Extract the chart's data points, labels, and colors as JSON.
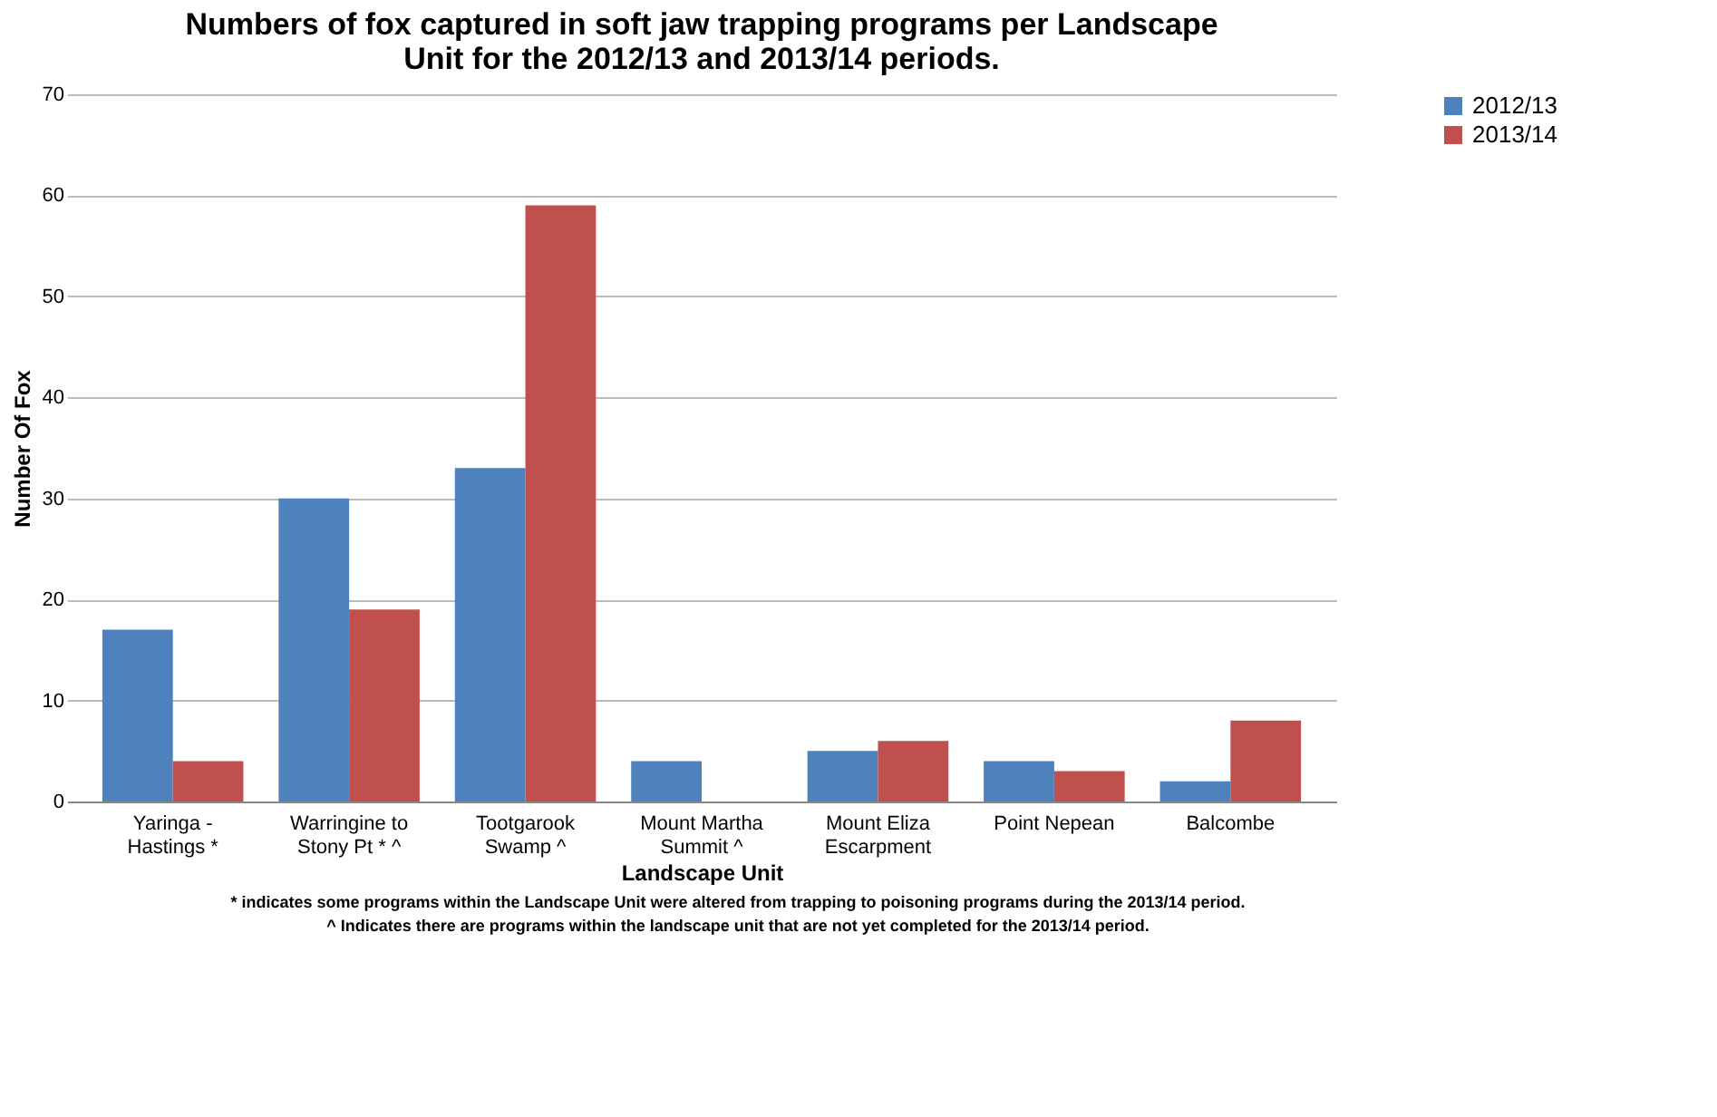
{
  "chart_data": {
    "type": "bar",
    "title": "Numbers of fox captured in soft jaw trapping programs per Landscape Unit for the 2012/13 and 2013/14 periods.",
    "xlabel": "Landscape Unit",
    "ylabel": "Number Of Fox",
    "categories": [
      "Yaringa - Hastings *",
      "Warringine to Stony Pt * ^",
      "Tootgarook Swamp ^",
      "Mount Martha Summit ^",
      "Mount Eliza Escarpment",
      "Point Nepean",
      "Balcombe"
    ],
    "series": [
      {
        "name": "2012/13",
        "color": "#4f81bd",
        "values": [
          17,
          30,
          33,
          4,
          5,
          4,
          2
        ]
      },
      {
        "name": "2013/14",
        "color": "#c0504d",
        "values": [
          4,
          19,
          59,
          null,
          6,
          3,
          8
        ]
      }
    ],
    "ylim": [
      0,
      70
    ],
    "yticks": [
      0,
      10,
      20,
      30,
      40,
      50,
      60,
      70
    ],
    "grid": "y",
    "legend": "right",
    "annotations": [
      "* indicates some programs within the Landscape Unit were altered from trapping to poisoning programs during the 2013/14 period.",
      "^ Indicates there are programs within the landscape unit that are not yet completed for the 2013/14 period."
    ]
  }
}
